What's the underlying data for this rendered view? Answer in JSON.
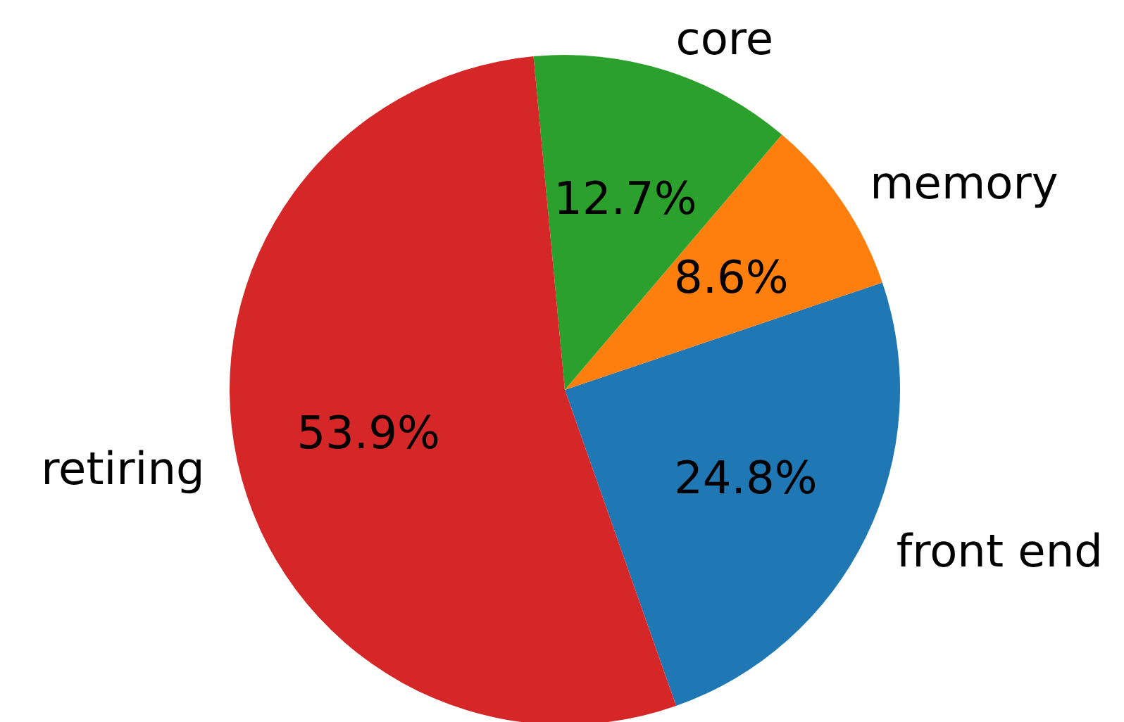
{
  "chart_data": {
    "type": "pie",
    "categories": [
      "front end",
      "memory",
      "core",
      "retiring"
    ],
    "values": [
      24.8,
      8.6,
      12.7,
      53.9
    ],
    "colors": [
      "#1f77b4",
      "#ff7f0e",
      "#2ca02c",
      "#d62728"
    ],
    "value_labels": [
      "24.8%",
      "8.6%",
      "12.7%",
      "53.9%"
    ]
  }
}
